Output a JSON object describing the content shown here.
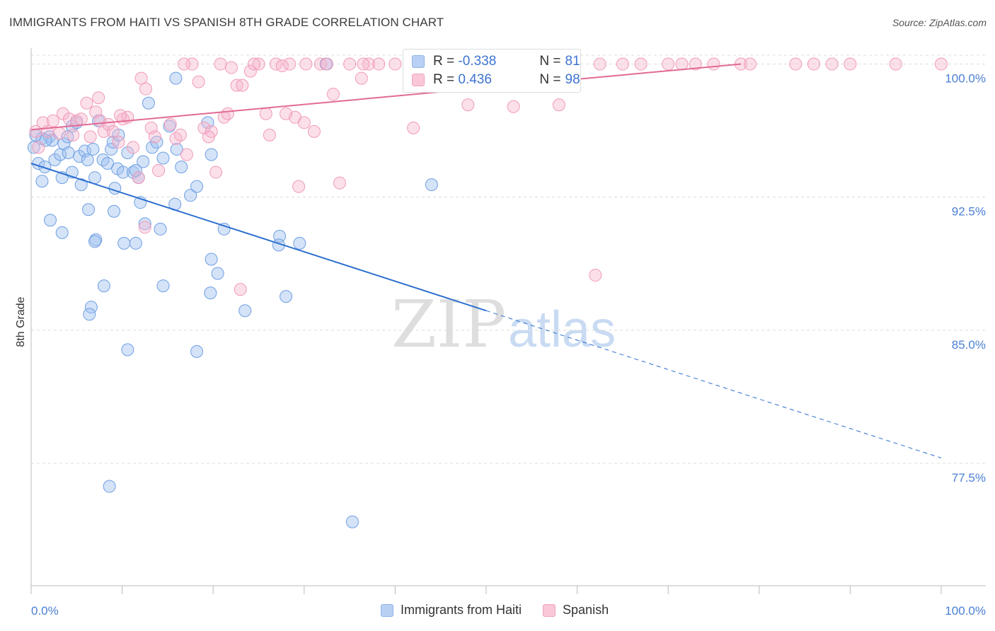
{
  "title": "IMMIGRANTS FROM HAITI VS SPANISH 8TH GRADE CORRELATION CHART",
  "source": "Source: ZipAtlas.com",
  "watermark": {
    "zip": "ZIP",
    "atlas": "atlas"
  },
  "legend": {
    "series": [
      {
        "r_label": "R =",
        "r_value": "-0.338",
        "n_label": "N =",
        "n_value": "81"
      },
      {
        "r_label": "R =",
        "r_value": "0.436",
        "n_label": "N =",
        "n_value": "98"
      }
    ]
  },
  "chart_data": {
    "type": "scatter",
    "title": "IMMIGRANTS FROM HAITI VS SPANISH 8TH GRADE CORRELATION CHART",
    "xlabel": "",
    "ylabel": "8th Grade",
    "xlim": [
      0,
      100
    ],
    "ylim": [
      70.6,
      100.5
    ],
    "x_tick_labels": [
      "0.0%",
      "100.0%"
    ],
    "y_ticks": [
      77.5,
      85.0,
      92.5,
      100.0
    ],
    "y_tick_labels": [
      "77.5%",
      "85.0%",
      "92.5%",
      "100.0%"
    ],
    "grid": true,
    "colors": {
      "Immigrants from Haiti": "#6f9fe3",
      "Spanish": "#f09ab8",
      "blue_line": "#2c6fce",
      "pink_line": "#e26a94"
    },
    "series": [
      {
        "name": "Immigrants from Haiti",
        "color": "#6f9fe3",
        "trend": {
          "x0": 0,
          "y0": 94.4,
          "x1": 50,
          "y1": 86.1,
          "dashed_to_x": 100,
          "dashed_to_y": 77.8
        },
        "points": [
          [
            0.5,
            96.0
          ],
          [
            1.2,
            95.8
          ],
          [
            2.0,
            95.9
          ],
          [
            0.8,
            94.4
          ],
          [
            1.5,
            94.2
          ],
          [
            2.3,
            95.7
          ],
          [
            2.6,
            94.6
          ],
          [
            3.2,
            94.9
          ],
          [
            3.6,
            95.5
          ],
          [
            4.1,
            95.0
          ],
          [
            4.5,
            96.5
          ],
          [
            5.0,
            96.7
          ],
          [
            5.3,
            94.8
          ],
          [
            5.9,
            95.1
          ],
          [
            6.2,
            94.6
          ],
          [
            6.8,
            95.2
          ],
          [
            7.4,
            96.8
          ],
          [
            7.9,
            94.6
          ],
          [
            8.4,
            94.4
          ],
          [
            8.8,
            95.2
          ],
          [
            9.0,
            95.6
          ],
          [
            9.5,
            94.1
          ],
          [
            10.1,
            93.9
          ],
          [
            10.6,
            95.0
          ],
          [
            11.2,
            93.9
          ],
          [
            11.8,
            93.6
          ],
          [
            12.3,
            94.5
          ],
          [
            12.9,
            97.8
          ],
          [
            13.3,
            95.3
          ],
          [
            13.8,
            95.6
          ],
          [
            14.5,
            94.7
          ],
          [
            15.2,
            96.5
          ],
          [
            16.0,
            95.2
          ],
          [
            16.5,
            94.2
          ],
          [
            1.2,
            93.4
          ],
          [
            3.4,
            93.6
          ],
          [
            5.5,
            93.2
          ],
          [
            7.0,
            93.6
          ],
          [
            9.2,
            93.0
          ],
          [
            12.0,
            92.2
          ],
          [
            15.8,
            92.1
          ],
          [
            17.5,
            92.6
          ],
          [
            18.2,
            93.1
          ],
          [
            19.8,
            94.9
          ],
          [
            2.1,
            91.2
          ],
          [
            3.4,
            90.5
          ],
          [
            6.3,
            91.8
          ],
          [
            7.1,
            90.1
          ],
          [
            9.1,
            91.7
          ],
          [
            10.2,
            89.9
          ],
          [
            11.5,
            89.9
          ],
          [
            12.5,
            91.0
          ],
          [
            14.2,
            90.7
          ],
          [
            21.2,
            90.7
          ],
          [
            27.3,
            90.3
          ],
          [
            29.5,
            89.9
          ],
          [
            27.2,
            89.8
          ],
          [
            7.0,
            90.0
          ],
          [
            19.8,
            89.0
          ],
          [
            8.0,
            87.5
          ],
          [
            14.5,
            87.5
          ],
          [
            20.5,
            88.2
          ],
          [
            19.7,
            87.1
          ],
          [
            28.0,
            86.9
          ],
          [
            6.6,
            86.3
          ],
          [
            6.4,
            85.9
          ],
          [
            23.5,
            86.1
          ],
          [
            10.6,
            83.9
          ],
          [
            18.2,
            83.8
          ],
          [
            8.6,
            76.2
          ],
          [
            35.3,
            74.2
          ],
          [
            44.0,
            93.2
          ],
          [
            19.4,
            96.7
          ],
          [
            15.9,
            99.2
          ],
          [
            32.4,
            100.0
          ],
          [
            1.6,
            95.7
          ],
          [
            4.0,
            95.9
          ],
          [
            11.5,
            94.0
          ],
          [
            4.5,
            93.9
          ],
          [
            9.6,
            96.0
          ],
          [
            0.3,
            95.3
          ]
        ]
      },
      {
        "name": "Spanish",
        "color": "#f09ab8",
        "trend": {
          "x0": 0,
          "y0": 96.3,
          "x1": 78,
          "y1": 100.0
        },
        "points": [
          [
            0.5,
            96.2
          ],
          [
            0.8,
            95.3
          ],
          [
            1.3,
            96.7
          ],
          [
            1.8,
            96.2
          ],
          [
            2.4,
            96.8
          ],
          [
            3.1,
            96.1
          ],
          [
            3.5,
            97.2
          ],
          [
            4.2,
            96.9
          ],
          [
            4.6,
            96.0
          ],
          [
            5.0,
            96.8
          ],
          [
            5.5,
            96.9
          ],
          [
            6.1,
            97.8
          ],
          [
            6.5,
            95.9
          ],
          [
            7.1,
            97.3
          ],
          [
            7.6,
            96.8
          ],
          [
            8.0,
            96.2
          ],
          [
            8.5,
            96.6
          ],
          [
            9.0,
            96.2
          ],
          [
            9.6,
            95.6
          ],
          [
            10.1,
            96.9
          ],
          [
            10.6,
            97.0
          ],
          [
            11.2,
            95.3
          ],
          [
            11.8,
            93.6
          ],
          [
            12.1,
            99.2
          ],
          [
            12.6,
            98.6
          ],
          [
            13.2,
            96.4
          ],
          [
            13.6,
            95.9
          ],
          [
            14.0,
            94.0
          ],
          [
            15.3,
            96.6
          ],
          [
            15.9,
            95.8
          ],
          [
            16.4,
            96.0
          ],
          [
            17.1,
            94.9
          ],
          [
            17.7,
            100.0
          ],
          [
            18.4,
            99.0
          ],
          [
            19.0,
            96.4
          ],
          [
            19.8,
            96.2
          ],
          [
            20.3,
            93.9
          ],
          [
            21.2,
            97.0
          ],
          [
            21.6,
            97.2
          ],
          [
            22.0,
            99.8
          ],
          [
            22.6,
            98.8
          ],
          [
            23.2,
            98.8
          ],
          [
            24.1,
            99.6
          ],
          [
            25.0,
            100.0
          ],
          [
            25.8,
            97.2
          ],
          [
            26.2,
            96.0
          ],
          [
            26.9,
            100.0
          ],
          [
            27.6,
            99.9
          ],
          [
            28.4,
            100.0
          ],
          [
            29.0,
            97.0
          ],
          [
            29.4,
            93.1
          ],
          [
            30.2,
            100.0
          ],
          [
            31.1,
            96.2
          ],
          [
            31.8,
            100.0
          ],
          [
            32.5,
            100.0
          ],
          [
            33.2,
            98.3
          ],
          [
            33.9,
            93.3
          ],
          [
            35.0,
            100.0
          ],
          [
            36.3,
            99.2
          ],
          [
            37.1,
            100.0
          ],
          [
            38.2,
            100.0
          ],
          [
            40.0,
            100.0
          ],
          [
            42.0,
            96.4
          ],
          [
            45.0,
            100.0
          ],
          [
            47.0,
            100.0
          ],
          [
            48.0,
            97.7
          ],
          [
            51.0,
            100.0
          ],
          [
            53.0,
            97.6
          ],
          [
            55.0,
            100.0
          ],
          [
            56.0,
            100.0
          ],
          [
            58.0,
            97.7
          ],
          [
            62.0,
            88.1
          ],
          [
            62.5,
            100.0
          ],
          [
            65.0,
            100.0
          ],
          [
            67.0,
            100.0
          ],
          [
            70.0,
            100.0
          ],
          [
            71.5,
            100.0
          ],
          [
            73.0,
            100.0
          ],
          [
            75.0,
            100.0
          ],
          [
            78.0,
            100.0
          ],
          [
            79.0,
            100.0
          ],
          [
            84.0,
            100.0
          ],
          [
            86.0,
            100.0
          ],
          [
            88.0,
            100.0
          ],
          [
            90.0,
            100.0
          ],
          [
            95.0,
            100.0
          ],
          [
            100.0,
            100.0
          ],
          [
            12.5,
            90.8
          ],
          [
            23.0,
            87.3
          ],
          [
            28.0,
            97.2
          ],
          [
            30.0,
            96.7
          ],
          [
            36.5,
            100.0
          ],
          [
            20.8,
            100.0
          ],
          [
            16.8,
            100.0
          ],
          [
            24.5,
            100.0
          ],
          [
            19.5,
            95.9
          ],
          [
            9.8,
            97.1
          ],
          [
            7.4,
            98.1
          ]
        ]
      }
    ]
  },
  "bottom_legend": [
    "Immigrants from Haiti",
    "Spanish"
  ]
}
